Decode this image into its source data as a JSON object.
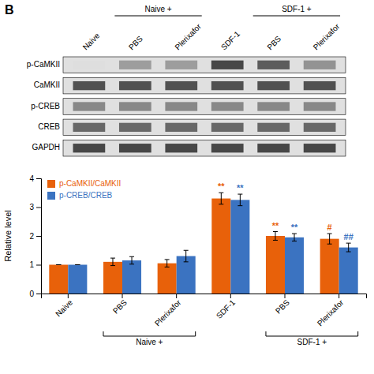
{
  "chart_data": [
    {
      "type": "heatmap",
      "annotations": [
        "B"
      ],
      "categories": [
        "Naive",
        "PBS",
        "Plerixafor",
        "SDF-1",
        "PBS",
        "Plerixafor"
      ],
      "category_groups": [
        null,
        "Naive +",
        "Naive +",
        null,
        "SDF-1 +",
        "SDF-1 +"
      ],
      "rows": [
        "p-CaMKII",
        "CaMKII",
        "p-CREB",
        "CREB",
        "GAPDH"
      ],
      "cells": [
        [
          0.15,
          0.45,
          0.45,
          0.85,
          0.75,
          0.5
        ],
        [
          0.8,
          0.8,
          0.8,
          0.8,
          0.8,
          0.8
        ],
        [
          0.55,
          0.55,
          0.55,
          0.55,
          0.55,
          0.55
        ],
        [
          0.7,
          0.7,
          0.7,
          0.7,
          0.7,
          0.7
        ],
        [
          0.85,
          0.85,
          0.85,
          0.85,
          0.85,
          0.85
        ]
      ],
      "color_range": [
        0,
        1
      ]
    },
    {
      "type": "bar",
      "categories": [
        "Naive",
        "PBS",
        "Plerixafor",
        "SDF-1",
        "PBS",
        "Plerixafor"
      ],
      "category_groups": [
        null,
        "Naive +",
        "Naive +",
        null,
        "SDF-1 +",
        "SDF-1 +"
      ],
      "series": [
        {
          "name": "p-CaMKII/CaMKII",
          "color": "#E8610A",
          "values": [
            1.0,
            1.1,
            1.05,
            3.3,
            2.0,
            1.9
          ],
          "errors": [
            0.0,
            0.13,
            0.13,
            0.2,
            0.15,
            0.18
          ],
          "significance": [
            null,
            null,
            null,
            "**",
            "**",
            "#"
          ]
        },
        {
          "name": "p-CREB/CREB",
          "color": "#3B73C1",
          "values": [
            1.0,
            1.15,
            1.3,
            3.25,
            1.95,
            1.6
          ],
          "errors": [
            0.0,
            0.13,
            0.2,
            0.2,
            0.13,
            0.15
          ],
          "significance": [
            null,
            null,
            null,
            "**",
            "**",
            "##"
          ]
        }
      ],
      "ylabel": "Relative level",
      "ylim": [
        0,
        4
      ],
      "yticks": [
        0,
        1,
        2,
        3,
        4
      ],
      "legend": "upper left",
      "grid": false
    }
  ]
}
